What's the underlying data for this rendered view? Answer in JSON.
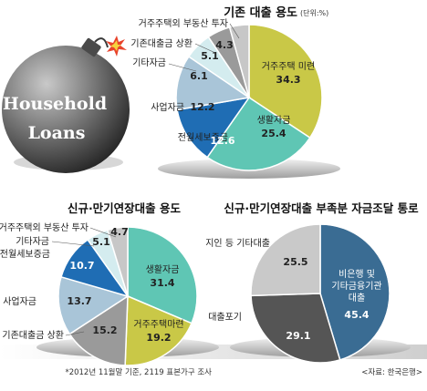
{
  "bomb": {
    "text_line1": "Household",
    "text_line2": "Loans"
  },
  "footnote": {
    "left": "*2012년 11월말 기준, 2119 표본가구 조사",
    "right": "<자료: 한국은행>"
  },
  "chart_data": [
    {
      "type": "pie",
      "title": "기존 대출 용도",
      "unit": "(단위:%)",
      "slices": [
        {
          "label": "거주주택 미련",
          "value": 34.3,
          "color": "#c9c847"
        },
        {
          "label": "생활자금",
          "value": 25.4,
          "color": "#5fc6b4"
        },
        {
          "label": "전월세보증금",
          "value": 12.6,
          "color": "#1f6db4"
        },
        {
          "label": "사업자금",
          "value": 12.2,
          "color": "#a9c5d8"
        },
        {
          "label": "기타자금",
          "value": 6.1,
          "color": "#d4ecef"
        },
        {
          "label": "기존대출금 상환",
          "value": 5.1,
          "color": "#9a9a9a"
        },
        {
          "label": "거주주택외 부동산 투자",
          "value": 4.3,
          "color": "#c7c7c7"
        }
      ]
    },
    {
      "type": "pie",
      "title": "신규·만기연장대출 용도",
      "slices": [
        {
          "label": "생활자금",
          "value": 31.4,
          "color": "#5fc6b4"
        },
        {
          "label": "거주주택마련",
          "value": 19.2,
          "color": "#c9c847"
        },
        {
          "label": "기존대출금 상환",
          "value": 15.2,
          "color": "#9a9a9a"
        },
        {
          "label": "사업자금",
          "value": 13.7,
          "color": "#a9c5d8"
        },
        {
          "label": "전월세보증금",
          "value": 10.7,
          "color": "#1f6db4"
        },
        {
          "label": "기타자금",
          "value": 5.1,
          "color": "#d4ecef"
        },
        {
          "label": "거주주택외 부동산 투자",
          "value": 4.7,
          "color": "#c7c7c7"
        }
      ]
    },
    {
      "type": "pie",
      "title": "신규·만기연장대출 부족분 자금조달 통로",
      "slices": [
        {
          "label": "비은행 및 기타금융기관 대출",
          "value": 45.4,
          "color": "#3a6c93"
        },
        {
          "label": "대출포기",
          "value": 29.1,
          "color": "#555555"
        },
        {
          "label": "지인 등 기타대출",
          "value": 25.5,
          "color": "#c9c9c9"
        }
      ]
    }
  ]
}
